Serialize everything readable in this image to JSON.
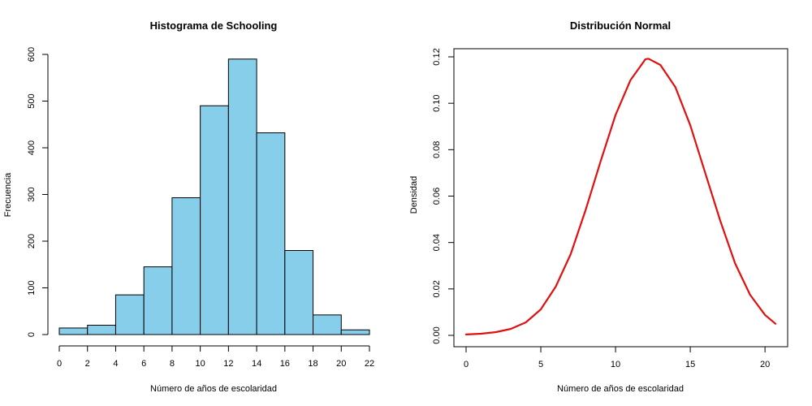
{
  "chart_data": [
    {
      "type": "bar",
      "title": "Histograma de Schooling",
      "xlabel": "Número de años de escolaridad",
      "ylabel": "Frecuencia",
      "bin_edges": [
        0,
        2,
        4,
        6,
        8,
        10,
        12,
        14,
        16,
        18,
        20,
        22
      ],
      "values": [
        14,
        20,
        85,
        145,
        293,
        490,
        590,
        432,
        180,
        42,
        10
      ],
      "xlim": [
        0,
        22
      ],
      "ylim": [
        0,
        600
      ],
      "xticks": [
        "0",
        "2",
        "4",
        "6",
        "8",
        "10",
        "12",
        "14",
        "16",
        "18",
        "20",
        "22"
      ],
      "yticks": [
        "0",
        "100",
        "200",
        "300",
        "400",
        "500",
        "600"
      ],
      "grid": false,
      "series_color": "#87ceeb"
    },
    {
      "type": "line",
      "title": "Distribución Normal",
      "xlabel": "Número de años de escolaridad",
      "ylabel": "Densidad",
      "x": [
        0,
        1,
        2,
        3,
        4,
        5,
        6,
        7,
        8,
        9,
        10,
        11,
        12,
        12.2,
        13,
        14,
        15,
        16,
        17,
        18,
        19,
        20,
        20.7
      ],
      "y": [
        0.0004,
        0.0007,
        0.0014,
        0.0028,
        0.0056,
        0.0112,
        0.021,
        0.035,
        0.054,
        0.075,
        0.095,
        0.11,
        0.119,
        0.1192,
        0.1165,
        0.107,
        0.0905,
        0.07,
        0.0495,
        0.031,
        0.0175,
        0.0088,
        0.005
      ],
      "xlim": [
        0,
        20.7
      ],
      "ylim": [
        0,
        0.12
      ],
      "xticks": [
        "0",
        "5",
        "10",
        "15",
        "20"
      ],
      "yticks": [
        "0.00",
        "0.02",
        "0.04",
        "0.06",
        "0.08",
        "0.10",
        "0.12"
      ],
      "grid": false,
      "series_color": "#e0100f"
    }
  ]
}
